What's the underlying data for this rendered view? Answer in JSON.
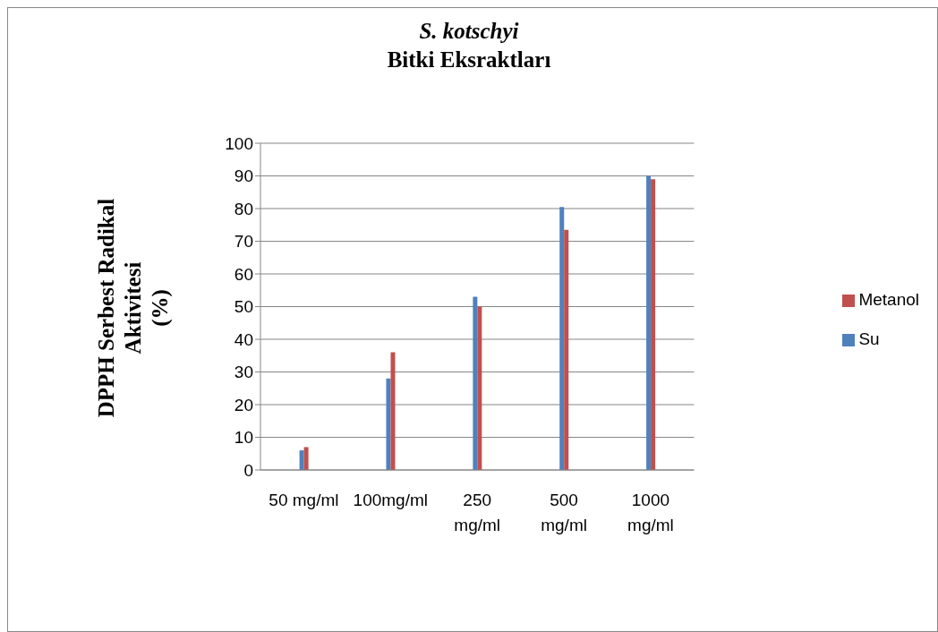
{
  "chart_data": {
    "type": "bar",
    "title": "S. kotschyi\nBitki Eksraktları",
    "ylabel": "DPPH Serbest Radikal\nAktivitesi\n(%)",
    "categories": [
      "50 mg/ml",
      "100mg/ml",
      "250 mg/ml",
      "500 mg/ml",
      "1000 mg/ml"
    ],
    "series": [
      {
        "name": "Su",
        "color": "#4f81bd",
        "values": [
          6,
          28,
          53,
          80.5,
          90
        ]
      },
      {
        "name": "Metanol",
        "color": "#c0504d",
        "values": [
          7,
          36,
          50,
          73.5,
          89
        ]
      }
    ],
    "ylim": [
      0,
      100
    ],
    "yticks": [
      0,
      10,
      20,
      30,
      40,
      50,
      60,
      70,
      80,
      90,
      100
    ],
    "grid": "y",
    "legend": "right"
  }
}
